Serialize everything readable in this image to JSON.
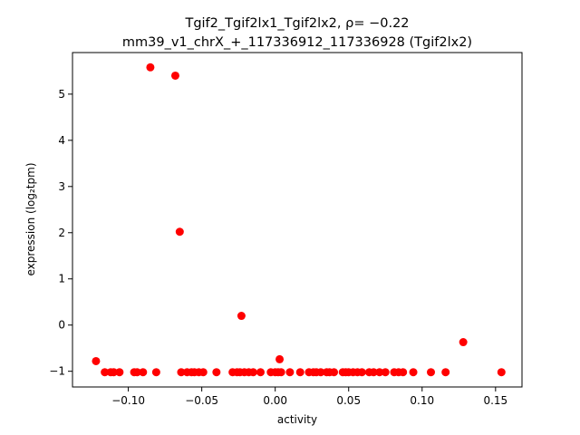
{
  "chart_data": {
    "type": "scatter",
    "title_line1": "Tgif2_Tgif2lx1_Tgif2lx2, ρ= −0.22",
    "title_line2": "mm39_v1_chrX_+_117336912_117336928 (Tgif2lx2)",
    "xlabel": "activity",
    "ylabel": "expression (log₂tpm)",
    "xlim": [
      -0.138,
      0.168
    ],
    "ylim": [
      -1.34,
      5.9
    ],
    "xticks": [
      {
        "v": -0.1,
        "label": "−0.10"
      },
      {
        "v": -0.05,
        "label": "−0.05"
      },
      {
        "v": 0.0,
        "label": "0.00"
      },
      {
        "v": 0.05,
        "label": "0.05"
      },
      {
        "v": 0.1,
        "label": "0.10"
      },
      {
        "v": 0.15,
        "label": "0.15"
      }
    ],
    "yticks": [
      {
        "v": -1,
        "label": "−1"
      },
      {
        "v": 0,
        "label": "0"
      },
      {
        "v": 1,
        "label": "1"
      },
      {
        "v": 2,
        "label": "2"
      },
      {
        "v": 3,
        "label": "3"
      },
      {
        "v": 4,
        "label": "4"
      },
      {
        "v": 5,
        "label": "5"
      }
    ],
    "point_color": "#ff0000",
    "grid": false,
    "points": [
      {
        "x": -0.122,
        "y": -0.78
      },
      {
        "x": -0.116,
        "y": -1.02
      },
      {
        "x": -0.112,
        "y": -1.02
      },
      {
        "x": -0.11,
        "y": -1.02
      },
      {
        "x": -0.106,
        "y": -1.02
      },
      {
        "x": -0.096,
        "y": -1.02
      },
      {
        "x": -0.094,
        "y": -1.02
      },
      {
        "x": -0.09,
        "y": -1.02
      },
      {
        "x": -0.085,
        "y": 5.58
      },
      {
        "x": -0.081,
        "y": -1.02
      },
      {
        "x": -0.068,
        "y": 5.4
      },
      {
        "x": -0.065,
        "y": 2.02
      },
      {
        "x": -0.064,
        "y": -1.02
      },
      {
        "x": -0.06,
        "y": -1.02
      },
      {
        "x": -0.057,
        "y": -1.02
      },
      {
        "x": -0.055,
        "y": -1.02
      },
      {
        "x": -0.052,
        "y": -1.02
      },
      {
        "x": -0.049,
        "y": -1.02
      },
      {
        "x": -0.04,
        "y": -1.02
      },
      {
        "x": -0.029,
        "y": -1.02
      },
      {
        "x": -0.026,
        "y": -1.02
      },
      {
        "x": -0.024,
        "y": -1.02
      },
      {
        "x": -0.023,
        "y": 0.2
      },
      {
        "x": -0.021,
        "y": -1.02
      },
      {
        "x": -0.018,
        "y": -1.02
      },
      {
        "x": -0.015,
        "y": -1.02
      },
      {
        "x": -0.01,
        "y": -1.02
      },
      {
        "x": -0.003,
        "y": -1.02
      },
      {
        "x": 0.0,
        "y": -1.02
      },
      {
        "x": 0.002,
        "y": -1.02
      },
      {
        "x": 0.003,
        "y": -0.74
      },
      {
        "x": 0.004,
        "y": -1.02
      },
      {
        "x": 0.01,
        "y": -1.02
      },
      {
        "x": 0.017,
        "y": -1.02
      },
      {
        "x": 0.023,
        "y": -1.02
      },
      {
        "x": 0.026,
        "y": -1.02
      },
      {
        "x": 0.028,
        "y": -1.02
      },
      {
        "x": 0.031,
        "y": -1.02
      },
      {
        "x": 0.035,
        "y": -1.02
      },
      {
        "x": 0.037,
        "y": -1.02
      },
      {
        "x": 0.04,
        "y": -1.02
      },
      {
        "x": 0.046,
        "y": -1.02
      },
      {
        "x": 0.048,
        "y": -1.02
      },
      {
        "x": 0.05,
        "y": -1.02
      },
      {
        "x": 0.053,
        "y": -1.02
      },
      {
        "x": 0.056,
        "y": -1.02
      },
      {
        "x": 0.059,
        "y": -1.02
      },
      {
        "x": 0.064,
        "y": -1.02
      },
      {
        "x": 0.067,
        "y": -1.02
      },
      {
        "x": 0.071,
        "y": -1.02
      },
      {
        "x": 0.075,
        "y": -1.02
      },
      {
        "x": 0.081,
        "y": -1.02
      },
      {
        "x": 0.084,
        "y": -1.02
      },
      {
        "x": 0.087,
        "y": -1.02
      },
      {
        "x": 0.094,
        "y": -1.02
      },
      {
        "x": 0.106,
        "y": -1.02
      },
      {
        "x": 0.116,
        "y": -1.02
      },
      {
        "x": 0.128,
        "y": -0.37
      },
      {
        "x": 0.154,
        "y": -1.02
      }
    ]
  }
}
